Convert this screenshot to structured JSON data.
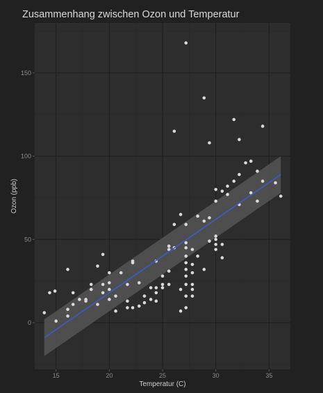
{
  "chart_data": {
    "type": "scatter",
    "title": "Zusammenhang zwischen Ozon und Temperatur",
    "xlabel": "Temperatur (C)",
    "ylabel": "Ozon (ppb)",
    "xlim": [
      13.0,
      37.0
    ],
    "ylim": [
      -28,
      180
    ],
    "xticks": [
      15,
      20,
      25,
      30,
      35
    ],
    "yticks": [
      0,
      50,
      100,
      150
    ],
    "grid": true,
    "legend": "none",
    "colors": {
      "background": "#212121",
      "panel": "#2d2d2d",
      "grid_major": "#1f1f1f",
      "grid_minor": "#292929",
      "points": "#d9d9d9",
      "regression_line": "#3f5bbf",
      "confidence_band": "#555555"
    },
    "points": [
      [
        13.9,
        6
      ],
      [
        14.4,
        18
      ],
      [
        14.9,
        19
      ],
      [
        15.0,
        1
      ],
      [
        16.1,
        32
      ],
      [
        16.1,
        8
      ],
      [
        16.1,
        4
      ],
      [
        16.6,
        18
      ],
      [
        16.6,
        11
      ],
      [
        17.2,
        14
      ],
      [
        17.8,
        14
      ],
      [
        17.8,
        13
      ],
      [
        18.3,
        23
      ],
      [
        18.3,
        20
      ],
      [
        18.9,
        34
      ],
      [
        18.9,
        11
      ],
      [
        19.4,
        41
      ],
      [
        19.4,
        23
      ],
      [
        19.4,
        18
      ],
      [
        20.0,
        30
      ],
      [
        20.0,
        24
      ],
      [
        20.0,
        20
      ],
      [
        20.0,
        14
      ],
      [
        20.6,
        16
      ],
      [
        20.6,
        7
      ],
      [
        21.1,
        30
      ],
      [
        21.7,
        23
      ],
      [
        21.7,
        13
      ],
      [
        21.7,
        9
      ],
      [
        22.2,
        37
      ],
      [
        22.2,
        36
      ],
      [
        22.2,
        9
      ],
      [
        22.8,
        24
      ],
      [
        22.8,
        10
      ],
      [
        23.3,
        16
      ],
      [
        23.3,
        12
      ],
      [
        23.9,
        21
      ],
      [
        23.9,
        14
      ],
      [
        24.4,
        37
      ],
      [
        24.4,
        21
      ],
      [
        24.4,
        18
      ],
      [
        24.4,
        13
      ],
      [
        25.0,
        28
      ],
      [
        25.0,
        23
      ],
      [
        25.0,
        21
      ],
      [
        25.6,
        46
      ],
      [
        25.6,
        44
      ],
      [
        25.6,
        31
      ],
      [
        25.6,
        23
      ],
      [
        26.1,
        115
      ],
      [
        26.1,
        59
      ],
      [
        26.1,
        45
      ],
      [
        26.7,
        65
      ],
      [
        26.7,
        20
      ],
      [
        26.7,
        7
      ],
      [
        27.2,
        168
      ],
      [
        27.2,
        59
      ],
      [
        27.2,
        48
      ],
      [
        27.2,
        45
      ],
      [
        27.2,
        40
      ],
      [
        27.2,
        36
      ],
      [
        27.2,
        32
      ],
      [
        27.2,
        28
      ],
      [
        27.2,
        23
      ],
      [
        27.2,
        16
      ],
      [
        27.2,
        9
      ],
      [
        27.8,
        44
      ],
      [
        27.8,
        35
      ],
      [
        27.8,
        30
      ],
      [
        27.8,
        23
      ],
      [
        27.8,
        20
      ],
      [
        27.8,
        16
      ],
      [
        28.3,
        64
      ],
      [
        28.3,
        40
      ],
      [
        28.9,
        135
      ],
      [
        28.9,
        61
      ],
      [
        28.9,
        32
      ],
      [
        29.4,
        108
      ],
      [
        29.4,
        63
      ],
      [
        29.4,
        49
      ],
      [
        30.0,
        80
      ],
      [
        30.0,
        73
      ],
      [
        30.0,
        52
      ],
      [
        30.0,
        50
      ],
      [
        30.0,
        47
      ],
      [
        30.0,
        44
      ],
      [
        30.6,
        79
      ],
      [
        30.6,
        47
      ],
      [
        30.6,
        39
      ],
      [
        31.1,
        82
      ],
      [
        31.1,
        77
      ],
      [
        31.7,
        122
      ],
      [
        31.7,
        85
      ],
      [
        32.2,
        110
      ],
      [
        32.2,
        89
      ],
      [
        32.2,
        71
      ],
      [
        32.8,
        96
      ],
      [
        33.3,
        97
      ],
      [
        33.3,
        78
      ],
      [
        33.9,
        91
      ],
      [
        33.9,
        73
      ],
      [
        34.4,
        118
      ],
      [
        34.4,
        85
      ],
      [
        35.6,
        84
      ],
      [
        36.1,
        76
      ]
    ],
    "regression": {
      "x": [
        13.9,
        36.1
      ],
      "fit": [
        -9,
        89
      ],
      "lower": [
        -20,
        78
      ],
      "upper": [
        2,
        100
      ]
    }
  }
}
